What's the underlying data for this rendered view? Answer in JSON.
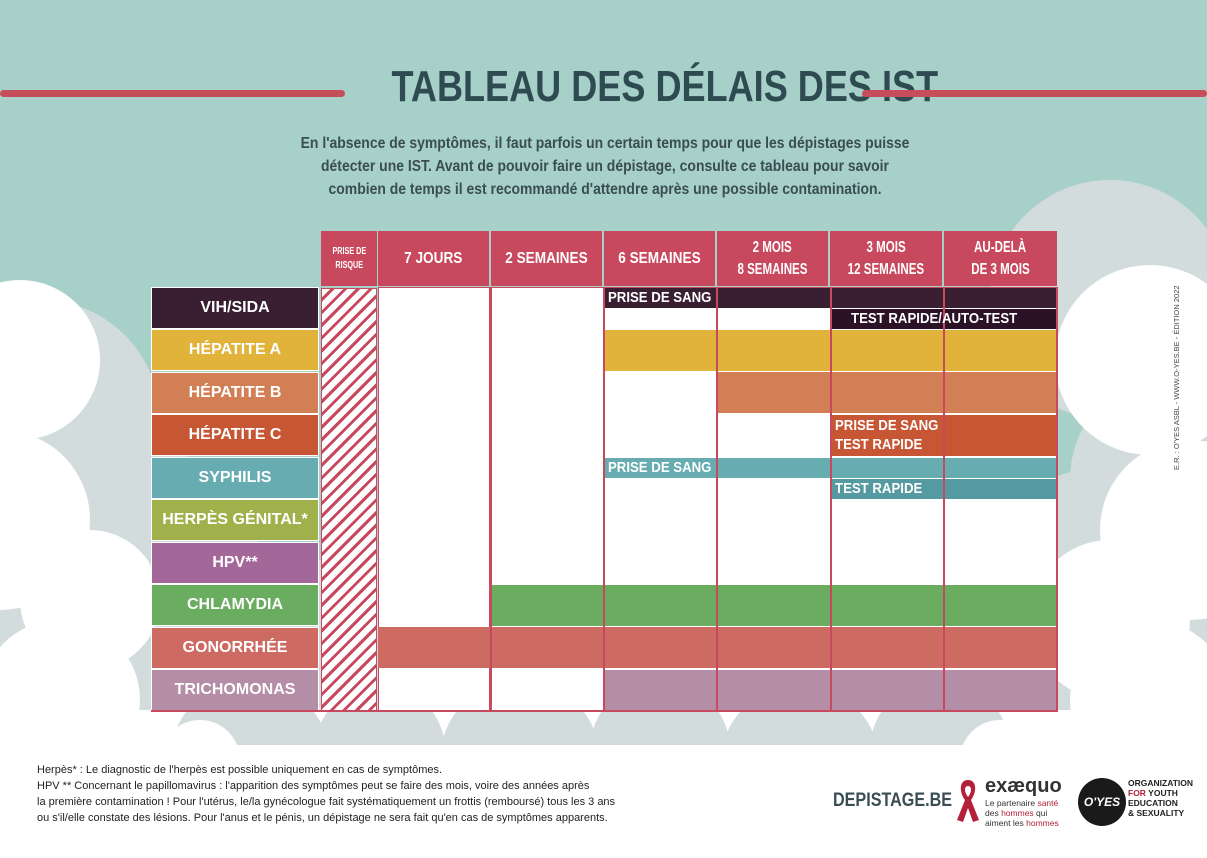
{
  "title": "TABLEAU DES DÉLAIS DES IST",
  "intro": {
    "line1": "En l'absence de symptômes, il faut parfois un certain temps pour que les dépistages puisse",
    "line2": "détecter une IST. Avant de pouvoir faire un dépistage, consulte ce tableau pour savoir",
    "line3": "combien de temps il est recommandé d'attendre après une possible contamination."
  },
  "header": {
    "risk": [
      "PRISE DE",
      "RISQUE"
    ],
    "cols": [
      {
        "l1": "7 JOURS",
        "l2": ""
      },
      {
        "l1": "2 SEMAINES",
        "l2": ""
      },
      {
        "l1": "6 SEMAINES",
        "l2": ""
      },
      {
        "l1": "2 MOIS",
        "l2": "8 SEMAINES"
      },
      {
        "l1": "3 MOIS",
        "l2": "12 SEMAINES"
      },
      {
        "l1": "AU-DELÀ",
        "l2": "DE 3 MOIS"
      }
    ]
  },
  "rows": [
    {
      "label": "VIH/SIDA",
      "color": "#3a1f33"
    },
    {
      "label": "HÉPATITE A",
      "color": "#e2b33a"
    },
    {
      "label": "HÉPATITE B",
      "color": "#d37f55"
    },
    {
      "label": "HÉPATITE C",
      "color": "#c75634"
    },
    {
      "label": "SYPHILIS",
      "color": "#67acb0"
    },
    {
      "label": "HERPÈS GÉNITAL*",
      "color": "#a0b04a"
    },
    {
      "label": "HPV**",
      "color": "#a4679a"
    },
    {
      "label": "CHLAMYDIA",
      "color": "#6aac60"
    },
    {
      "label": "GONORRHÉE",
      "color": "#cd6a62"
    },
    {
      "label": "TRICHOMONAS",
      "color": "#b48da6"
    }
  ],
  "cell_labels": {
    "vih_blood": "PRISE DE SANG",
    "vih_rapid": "TEST RAPIDE/AUTO-TEST",
    "hepc_l1": "PRISE DE SANG",
    "hepc_l2": "TEST RAPIDE",
    "syph_blood": "PRISE DE SANG",
    "syph_rapid": "TEST RAPIDE"
  },
  "footnotes": {
    "l1": "Herpès* : Le diagnostic de l'herpès est possible uniquement en cas de symptômes.",
    "l2": "HPV ** Concernant le papillomavirus : l'apparition des symptômes peut se faire des mois, voire des années après",
    "l3": "la première contamination ! Pour l'utérus, le/la gynécologue fait systématiquement un frottis (remboursé) tous les 3 ans",
    "l4": "ou s'il/elle constate des lésions. Pour l'anus et le pénis, un dépistage ne sera fait qu'en cas de symptômes apparents."
  },
  "side_credit": "E.R. : O'YES ASBL - WWW.O-YES.BE - ÉDITION 2022",
  "logos": {
    "depistage": "DEPISTAGE.BE",
    "exaequo_name": "exæquo",
    "exaequo_tag1": "Le partenaire ",
    "exaequo_tag1r": "santé",
    "exaequo_tag2": "des ",
    "exaequo_tag2r": "hommes",
    "exaequo_tag2b": " qui",
    "exaequo_tag3": "aiment les ",
    "exaequo_tag3r": "hommes",
    "oyes": "O'YES",
    "oyes_org1": "ORGANIZATION",
    "oyes_org2a": "FOR",
    "oyes_org2b": " YOUTH",
    "oyes_org3": "EDUCATION",
    "oyes_org4": "& SEXUALITY"
  },
  "colors": {
    "background_teal": "#a7d0c9",
    "cloud": "#d3dcdc",
    "accent": "#c8485d",
    "title": "#2f4b52"
  }
}
